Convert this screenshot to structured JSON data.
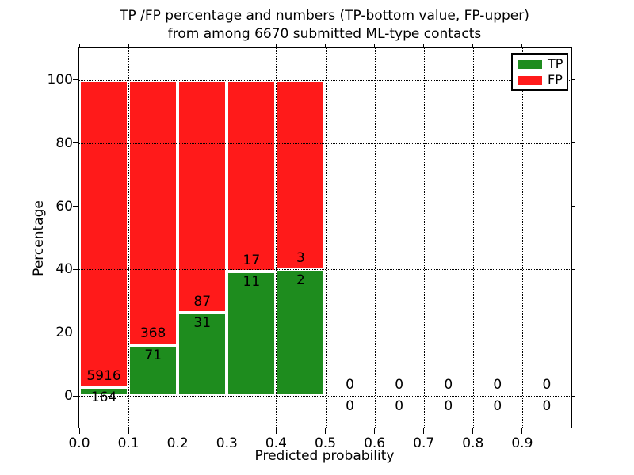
{
  "title": {
    "line1": "TP /FP percentage and numbers (TP-bottom value, FP-upper)",
    "line2": "from among 6670 submitted ML-type contacts"
  },
  "axes": {
    "xlabel": "Predicted probability",
    "ylabel": "Percentage",
    "xtick_labels": [
      "0.0",
      "0.1",
      "0.2",
      "0.3",
      "0.4",
      "0.5",
      "0.6",
      "0.7",
      "0.8",
      "0.9"
    ],
    "xtick_values": [
      0,
      0.1,
      0.2,
      0.3,
      0.4,
      0.5,
      0.6,
      0.7,
      0.8,
      0.9
    ],
    "ytick_labels": [
      "0",
      "20",
      "40",
      "60",
      "80",
      "100"
    ],
    "ytick_values": [
      0,
      20,
      40,
      60,
      80,
      100
    ],
    "xlim": [
      0,
      1
    ],
    "ylim": [
      -10,
      110
    ],
    "grid": "dotted"
  },
  "legend": {
    "position": "upper right",
    "items": [
      {
        "label": "TP",
        "color": "#1e8c1e"
      },
      {
        "label": "FP",
        "color": "#ff1a1a"
      }
    ]
  },
  "chart_data": {
    "type": "bar",
    "stacked": true,
    "title": "TP /FP percentage and numbers (TP-bottom value, FP-upper) from among 6670 submitted ML-type contacts",
    "xlabel": "Predicted probability",
    "ylabel": "Percentage",
    "xlim": [
      0,
      1
    ],
    "ylim": [
      -10,
      110
    ],
    "grid": true,
    "grid_style": "dotted",
    "legend_position": "upper right",
    "total_submitted_contacts": 6670,
    "series_names": [
      "TP",
      "FP"
    ],
    "colors": {
      "TP": "#1e8c1e",
      "FP": "#ff1a1a"
    },
    "bins": [
      {
        "x_start": 0.0,
        "x_end": 0.1,
        "tp_count": 164,
        "fp_count": 5916,
        "tp_pct": 2.7,
        "fp_pct": 97.3
      },
      {
        "x_start": 0.1,
        "x_end": 0.2,
        "tp_count": 71,
        "fp_count": 368,
        "tp_pct": 16.2,
        "fp_pct": 83.8
      },
      {
        "x_start": 0.2,
        "x_end": 0.3,
        "tp_count": 31,
        "fp_count": 87,
        "tp_pct": 26.3,
        "fp_pct": 73.7
      },
      {
        "x_start": 0.3,
        "x_end": 0.4,
        "tp_count": 11,
        "fp_count": 17,
        "tp_pct": 39.3,
        "fp_pct": 60.7
      },
      {
        "x_start": 0.4,
        "x_end": 0.5,
        "tp_count": 2,
        "fp_count": 3,
        "tp_pct": 40.0,
        "fp_pct": 60.0
      },
      {
        "x_start": 0.5,
        "x_end": 0.6,
        "tp_count": 0,
        "fp_count": 0,
        "tp_pct": 0,
        "fp_pct": 0
      },
      {
        "x_start": 0.6,
        "x_end": 0.7,
        "tp_count": 0,
        "fp_count": 0,
        "tp_pct": 0,
        "fp_pct": 0
      },
      {
        "x_start": 0.7,
        "x_end": 0.8,
        "tp_count": 0,
        "fp_count": 0,
        "tp_pct": 0,
        "fp_pct": 0
      },
      {
        "x_start": 0.8,
        "x_end": 0.9,
        "tp_count": 0,
        "fp_count": 0,
        "tp_pct": 0,
        "fp_pct": 0
      },
      {
        "x_start": 0.9,
        "x_end": 1.0,
        "tp_count": 0,
        "fp_count": 0,
        "tp_pct": 0,
        "fp_pct": 0
      }
    ]
  }
}
